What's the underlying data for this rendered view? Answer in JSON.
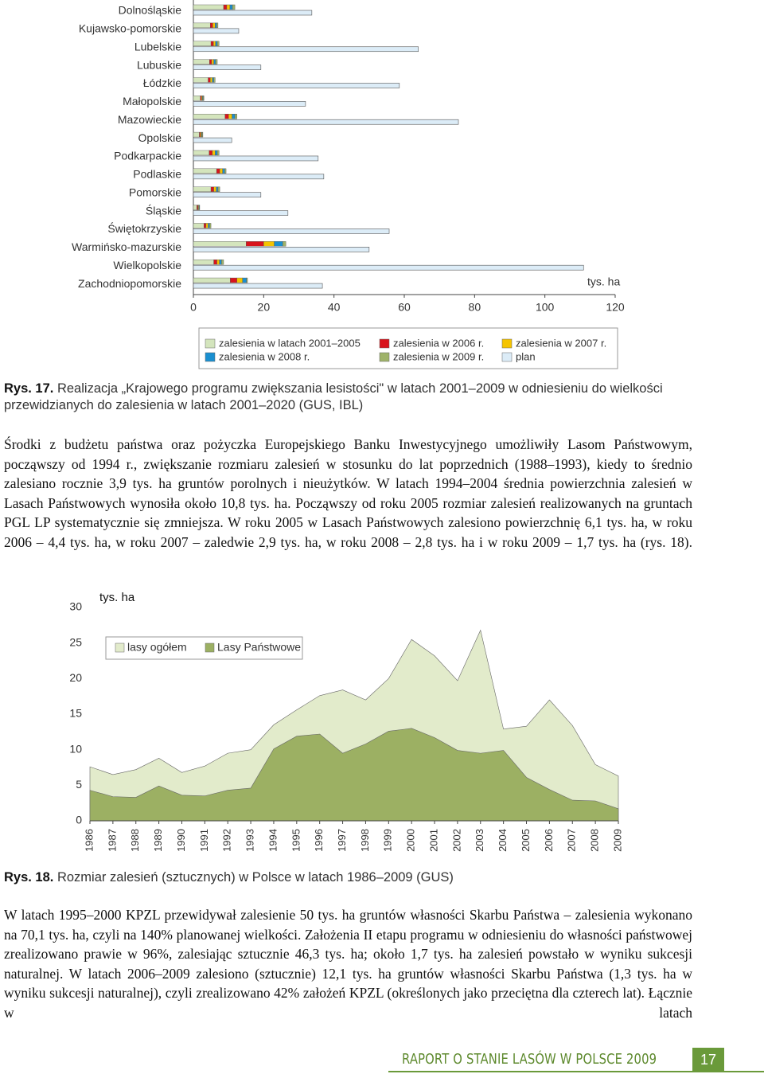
{
  "chart_data": [
    {
      "type": "hbar_stacked",
      "unit_label": "tys. ha",
      "categories": [
        "Dolnośląskie",
        "Kujawsko-pomorskie",
        "Lubelskie",
        "Lubuskie",
        "Łódzkie",
        "Małopolskie",
        "Mazowieckie",
        "Opolskie",
        "Podkarpackie",
        "Podlaskie",
        "Pomorskie",
        "Śląskie",
        "Świętokrzyskie",
        "Warmińsko-mazurskie",
        "Wielkopolskie",
        "Zachodniopomorskie"
      ],
      "series": [
        {
          "name": "zalesienia w latach 2001–2005",
          "color": "#d4e5bd",
          "values": [
            8.6,
            4.8,
            5.0,
            4.6,
            4.2,
            2.0,
            9.0,
            1.7,
            4.5,
            6.6,
            5.0,
            1.0,
            3.0,
            15.0,
            5.8,
            10.5
          ]
        },
        {
          "name": "zalesienia w 2006 r.",
          "color": "#d8141c",
          "values": [
            0.9,
            0.7,
            0.7,
            0.6,
            0.6,
            0.3,
            1.0,
            0.3,
            0.9,
            0.9,
            0.8,
            0.3,
            0.6,
            5.0,
            0.9,
            1.9
          ]
        },
        {
          "name": "zalesienia w 2007 r.",
          "color": "#f5c400",
          "values": [
            0.9,
            0.7,
            0.6,
            0.6,
            0.6,
            0.3,
            1.0,
            0.3,
            0.8,
            0.8,
            0.7,
            0.2,
            0.6,
            3.0,
            0.7,
            1.6
          ]
        },
        {
          "name": "zalesienia w 2008 r.",
          "color": "#1a8fd0",
          "values": [
            0.7,
            0.4,
            0.5,
            0.5,
            0.4,
            0.2,
            0.8,
            0.2,
            0.6,
            0.6,
            0.5,
            0.2,
            0.4,
            2.4,
            0.6,
            1.1
          ]
        },
        {
          "name": "zalesienia w 2009 r.",
          "color": "#9fb36a",
          "values": [
            0.7,
            0.4,
            0.5,
            0.5,
            0.4,
            0.2,
            0.6,
            0.2,
            0.5,
            0.4,
            0.5,
            0.1,
            0.4,
            0.9,
            0.6,
            0.3
          ]
        },
        {
          "name": "plan",
          "color": "#dcecf7",
          "values": [
            33.7,
            12.9,
            64.0,
            19.2,
            58.6,
            31.9,
            75.4,
            10.9,
            35.5,
            37.1,
            19.2,
            26.9,
            55.7,
            50.0,
            111.0,
            36.7
          ]
        }
      ],
      "xlim": [
        0,
        120
      ],
      "xticks": [
        0,
        20,
        40,
        60,
        80,
        100,
        120
      ]
    },
    {
      "type": "area",
      "unit_label": "tys. ha",
      "categories": [
        "1986",
        "1987",
        "1988",
        "1989",
        "1990",
        "1991",
        "1992",
        "1993",
        "1994",
        "1995",
        "1996",
        "1997",
        "1998",
        "1999",
        "2000",
        "2001",
        "2002",
        "2003",
        "2004",
        "2005",
        "2006",
        "2007",
        "2008",
        "2009"
      ],
      "series": [
        {
          "name": "lasy ogółem",
          "color": "#e2ebcb",
          "values": [
            7.6,
            6.5,
            7.2,
            8.8,
            6.8,
            7.7,
            9.5,
            10.0,
            13.5,
            15.6,
            17.6,
            18.4,
            17.0,
            20.0,
            25.5,
            23.2,
            19.7,
            26.8,
            12.9,
            13.3,
            17.0,
            13.4,
            7.9,
            6.3
          ]
        },
        {
          "name": "Lasy Państwowe",
          "color": "#9cb063",
          "values": [
            4.3,
            3.4,
            3.3,
            4.9,
            3.6,
            3.5,
            4.3,
            4.6,
            10.1,
            11.9,
            12.2,
            9.5,
            10.8,
            12.6,
            13.0,
            11.7,
            9.9,
            9.5,
            9.9,
            6.1,
            4.4,
            2.9,
            2.8,
            1.7
          ]
        }
      ],
      "ylim": [
        0,
        30
      ],
      "yticks": [
        0,
        5,
        10,
        15,
        20,
        25,
        30
      ]
    }
  ],
  "captions": [
    {
      "label": "Rys. 17.",
      "text": "Realizacja „Krajowego programu zwiększania lesistości\" w latach 2001–2009 w odniesieniu do wielkości przewidzianych do zalesienia w latach 2001–2020 (GUS, IBL)"
    },
    {
      "label": "Rys. 18.",
      "text": "Rozmiar zalesień (sztucznych) w Polsce w latach 1986–2009 (GUS)"
    }
  ],
  "paragraphs": [
    "Środki z budżetu państwa oraz pożyczka Europejskiego Banku Inwestycyjnego umożliwiły Lasom Państwowym, począwszy od 1994 r., zwiększanie rozmiaru zalesień w stosunku do lat poprzednich (1988–1993), kiedy to średnio zalesiano rocznie 3,9 tys. ha gruntów porolnych i nieużytków. W latach 1994–2004 średnia powierzchnia zalesień w Lasach Państwowych wynosiła około 10,8 tys. ha. Począwszy od roku 2005 rozmiar zalesień realizowanych na gruntach PGL LP systematycznie się zmniejsza. W roku 2005 w Lasach Państwowych zalesiono powierzchnię 6,1 tys. ha, w roku 2006 – 4,4 tys. ha, w roku 2007 – zaledwie 2,9 tys. ha, w roku 2008 – 2,8 tys. ha i w roku 2009 – 1,7 tys. ha (rys. 18).",
    "W latach 1995–2000 KPZL przewidywał zalesienie 50 tys. ha gruntów własności Skarbu Państwa – zalesienia wykonano na 70,1 tys. ha, czyli na 140% planowanej wielkości. Założenia II etapu programu w odniesieniu do własności państwowej zrealizowano prawie w 96%, zalesiając sztucznie 46,3 tys. ha; około 1,7 tys. ha zalesień powstało w wyniku sukcesji naturalnej. W latach 2006–2009 zalesiono (sztucznie) 12,1 tys. ha gruntów własności Skarbu Państwa (1,3 tys. ha w wyniku sukcesji naturalnej), czyli zrealizowano 42% założeń KPZL (określonych jako przeciętna dla czterech lat). Łącznie w latach"
  ],
  "footer": {
    "title": "RAPORT O STANIE LASÓW W POLSCE 2009",
    "page": "17"
  }
}
